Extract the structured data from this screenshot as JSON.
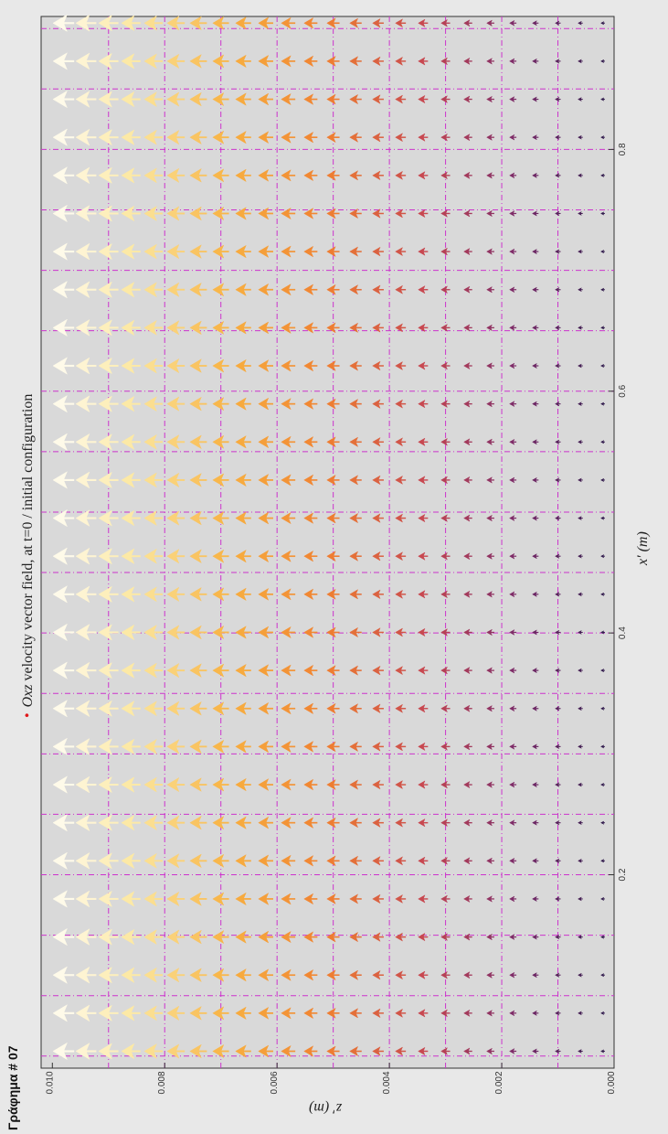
{
  "page": {
    "side_label": "Γράφημα # 07"
  },
  "chart_data": {
    "type": "quiver",
    "title_bullet": "•",
    "title_italic": "Oxz",
    "title_rest": " velocity vector field, at t=0 / initial configuration",
    "xlabel": "x′ (m)",
    "ylabel": "z′ (m)",
    "xlim": [
      0.04,
      0.91
    ],
    "ylim": [
      0.0,
      0.0102
    ],
    "x_ticks": [
      "0.2",
      "0.4",
      "0.6",
      "0.8"
    ],
    "x_tick_values": [
      0.2,
      0.4,
      0.6,
      0.8
    ],
    "y_ticks": [
      "0.010",
      "0.008",
      "0.006",
      "0.004",
      "0.002",
      "0.000"
    ],
    "y_tick_values": [
      0.01,
      0.008,
      0.006,
      0.004,
      0.002,
      0.0
    ],
    "x_grid": [
      0.05,
      0.1,
      0.15,
      0.2,
      0.25,
      0.3,
      0.35,
      0.4,
      0.45,
      0.5,
      0.55,
      0.6,
      0.65,
      0.7,
      0.75,
      0.8,
      0.85,
      0.9
    ],
    "y_grid": [
      0.001,
      0.002,
      0.003,
      0.004,
      0.005,
      0.006,
      0.007,
      0.008,
      0.009
    ],
    "grid": true,
    "grid_color": "#cc33cc",
    "background": "#d9d9d9",
    "vector_direction": "+z",
    "vector_rows_z": [
      0.0002,
      0.0006,
      0.001,
      0.0014,
      0.0018,
      0.0022,
      0.0026,
      0.003,
      0.0034,
      0.0038,
      0.0042,
      0.0046,
      0.005,
      0.0054,
      0.0058,
      0.0062,
      0.0066,
      0.007,
      0.0074,
      0.0078,
      0.0082,
      0.0086,
      0.009,
      0.0094,
      0.0098
    ],
    "vector_columns_x": [
      0.054,
      0.0855,
      0.117,
      0.1485,
      0.18,
      0.2115,
      0.243,
      0.2745,
      0.306,
      0.3375,
      0.369,
      0.4005,
      0.432,
      0.4635,
      0.495,
      0.5265,
      0.558,
      0.5895,
      0.621,
      0.6525,
      0.684,
      0.7155,
      0.747,
      0.7785,
      0.81,
      0.8415,
      0.873,
      0.9045
    ],
    "vector_magnitude": "increases with z′",
    "colormap": [
      "#2a1a4a",
      "#7a2a6a",
      "#c84850",
      "#f08030",
      "#f8b040",
      "#fce8a0",
      "#ffffff"
    ]
  }
}
